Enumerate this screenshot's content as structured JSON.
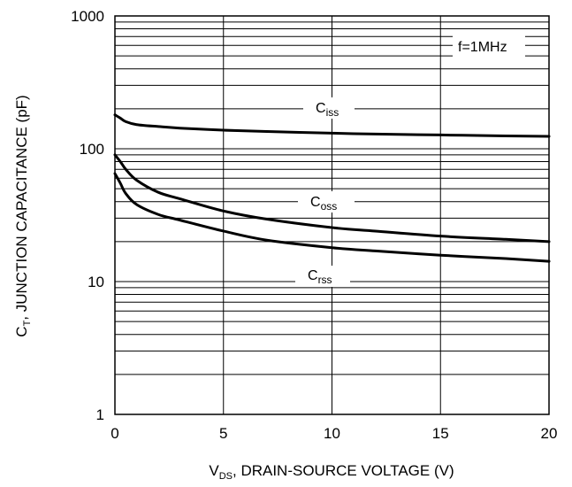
{
  "chart_data": {
    "type": "line",
    "annotation": "f=1MHz",
    "x_axis": {
      "label_main": "V",
      "label_sub": "DS",
      "label_rest": ", DRAIN-SOURCE VOLTAGE (V)",
      "range": [
        0,
        20
      ],
      "ticks": [
        0,
        5,
        10,
        15,
        20
      ],
      "tick_labels": [
        "0",
        "5",
        "10",
        "15",
        "20"
      ]
    },
    "y_axis": {
      "label_main": "C",
      "label_sub": "T",
      "label_rest": ", JUNCTION CAPACITANCE (pF)",
      "scale": "log",
      "range": [
        1,
        1000
      ],
      "ticks": [
        1,
        10,
        100,
        1000
      ],
      "tick_labels": [
        "1",
        "10",
        "100",
        "1000"
      ]
    },
    "grid": true,
    "series": [
      {
        "name_main": "C",
        "name_sub": "iss",
        "x": [
          0,
          0.25,
          0.5,
          1,
          2,
          3,
          5,
          7,
          10,
          12,
          15,
          18,
          20
        ],
        "y": [
          180,
          170,
          160,
          152,
          147,
          143,
          138,
          135,
          131,
          129,
          127,
          125,
          124
        ]
      },
      {
        "name_main": "C",
        "name_sub": "oss",
        "x": [
          0,
          0.25,
          0.5,
          1,
          2,
          3,
          5,
          7,
          10,
          12,
          15,
          18,
          20
        ],
        "y": [
          90,
          80,
          70,
          58,
          47,
          42,
          34,
          29.5,
          25.5,
          24,
          22,
          20.8,
          20
        ]
      },
      {
        "name_main": "C",
        "name_sub": "rss",
        "x": [
          0,
          0.25,
          0.5,
          1,
          2,
          3,
          5,
          7,
          10,
          12,
          15,
          18,
          20
        ],
        "y": [
          65,
          55,
          46,
          38,
          32,
          29,
          24,
          20.5,
          18,
          17,
          15.8,
          14.9,
          14.2
        ]
      }
    ]
  }
}
